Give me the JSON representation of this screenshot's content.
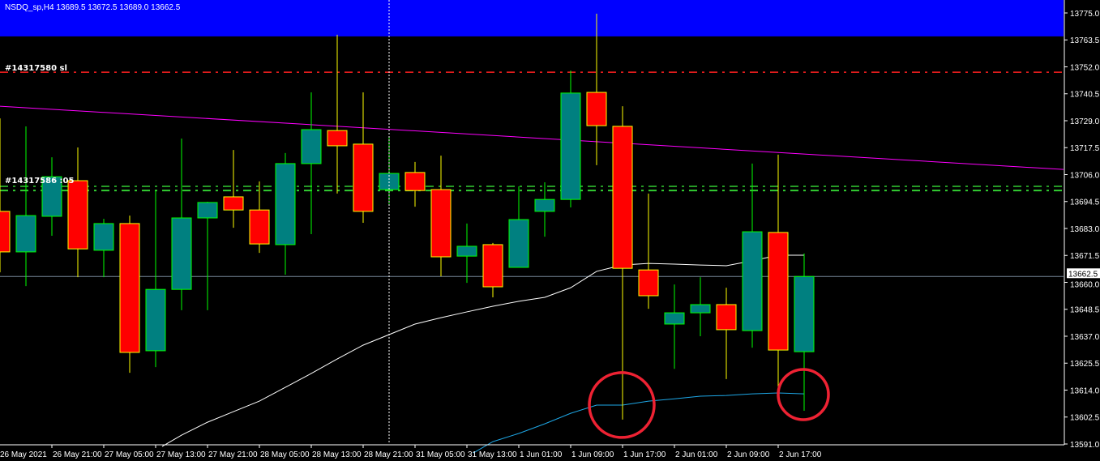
{
  "window": {
    "title": "NSDQ_sp,H4 13689.5 13672.5 13689.0 13662.5"
  },
  "colors": {
    "background": "#000000",
    "bull_body": "#008080",
    "bull_outline": "#00ff00",
    "bear_body": "#ff0000",
    "bear_outline": "#ffff00",
    "trendline": "#ff00ff",
    "ma_slow": "#ffffff",
    "ma_fast": "#1ea7e6",
    "sl_line": "#ff2020",
    "order_lines": "#32cd32",
    "price_line": "#778899",
    "highlight_circles": "#ee2233",
    "top_band": "#0000ff"
  },
  "order_labels": [
    {
      "text": "#14317580 sl"
    },
    {
      "text": "#14317586 :05"
    }
  ],
  "chart_data": {
    "type": "candlestick",
    "grid": false,
    "ylim": [
      13591.0,
      13775.0
    ],
    "y_ticks": [
      "13775.0",
      "13763.5",
      "13752.0",
      "13740.5",
      "13729.0",
      "13717.5",
      "13706.0",
      "13694.5",
      "13683.0",
      "13671.5",
      "13660.0",
      "13648.5",
      "13637.0",
      "13625.5",
      "13614.0",
      "13602.5",
      "13591.0"
    ],
    "x_ticks": [
      "26 May 2021",
      "26 May 21:00",
      "27 May 05:00",
      "27 May 13:00",
      "27 May 21:00",
      "28 May 05:00",
      "28 May 13:00",
      "28 May 21:00",
      "31 May 05:00",
      "31 May 13:00",
      "1 Jun 01:00",
      "1 Jun 09:00",
      "1 Jun 17:00",
      "2 Jun 01:00",
      "2 Jun 09:00",
      "2 Jun 17:00"
    ],
    "current_price": "13662.5",
    "candles": [
      {
        "o": 13690.3,
        "h": 13730.0,
        "l": 13664.3,
        "c": 13673.0
      },
      {
        "o": 13673.0,
        "h": 13726.6,
        "l": 13658.4,
        "c": 13688.5
      },
      {
        "o": 13688.2,
        "h": 13713.4,
        "l": 13679.9,
        "c": 13705.1
      },
      {
        "o": 13703.4,
        "h": 13717.6,
        "l": 13662.2,
        "c": 13674.3
      },
      {
        "o": 13673.7,
        "h": 13687.1,
        "l": 13662.2,
        "c": 13685.1
      },
      {
        "o": 13685.1,
        "h": 13688.5,
        "l": 13621.4,
        "c": 13630.1
      },
      {
        "o": 13630.8,
        "h": 13699.2,
        "l": 13623.8,
        "c": 13657.0
      },
      {
        "o": 13657.0,
        "h": 13721.4,
        "l": 13648.1,
        "c": 13687.5
      },
      {
        "o": 13687.5,
        "h": 13694.4,
        "l": 13648.1,
        "c": 13694.1
      },
      {
        "o": 13696.5,
        "h": 13716.5,
        "l": 13683.3,
        "c": 13690.9
      },
      {
        "o": 13690.9,
        "h": 13703.1,
        "l": 13672.6,
        "c": 13676.4
      },
      {
        "o": 13676.1,
        "h": 13715.2,
        "l": 13663.3,
        "c": 13710.7
      },
      {
        "o": 13710.7,
        "h": 13741.1,
        "l": 13680.6,
        "c": 13725.2
      },
      {
        "o": 13724.8,
        "h": 13765.7,
        "l": 13697.9,
        "c": 13718.3
      },
      {
        "o": 13719.0,
        "h": 13741.1,
        "l": 13685.4,
        "c": 13690.3
      },
      {
        "o": 13699.6,
        "h": 13722.1,
        "l": 13693.4,
        "c": 13706.5
      },
      {
        "o": 13706.9,
        "h": 13711.4,
        "l": 13692.3,
        "c": 13699.2
      },
      {
        "o": 13699.6,
        "h": 13714.1,
        "l": 13662.6,
        "c": 13670.9
      },
      {
        "o": 13671.2,
        "h": 13685.1,
        "l": 13659.8,
        "c": 13675.4
      },
      {
        "o": 13676.1,
        "h": 13676.8,
        "l": 13653.6,
        "c": 13658.1
      },
      {
        "o": 13666.4,
        "h": 13701.0,
        "l": 13666.4,
        "c": 13686.8
      },
      {
        "o": 13690.3,
        "h": 13702.7,
        "l": 13679.5,
        "c": 13695.4
      },
      {
        "o": 13695.4,
        "h": 13750.4,
        "l": 13692.0,
        "c": 13740.8
      },
      {
        "o": 13741.1,
        "h": 13774.7,
        "l": 13710.0,
        "c": 13726.9
      },
      {
        "o": 13726.6,
        "h": 13735.2,
        "l": 13601.4,
        "c": 13666.0
      },
      {
        "o": 13665.3,
        "h": 13697.9,
        "l": 13648.7,
        "c": 13654.3
      },
      {
        "o": 13642.2,
        "h": 13659.1,
        "l": 13623.1,
        "c": 13647.0
      },
      {
        "o": 13647.0,
        "h": 13662.2,
        "l": 13637.0,
        "c": 13650.5
      },
      {
        "o": 13650.5,
        "h": 13657.7,
        "l": 13618.7,
        "c": 13639.8
      },
      {
        "o": 13639.4,
        "h": 13710.7,
        "l": 13632.1,
        "c": 13681.6
      },
      {
        "o": 13681.3,
        "h": 13714.5,
        "l": 13615.5,
        "c": 13631.1
      },
      {
        "o": 13630.4,
        "h": 13672.3,
        "l": 13605.2,
        "c": 13662.5
      }
    ],
    "moving_averages": [
      {
        "color": "#ffffff",
        "start_index": 7,
        "values": [
          13594.8,
          13600.3,
          13604.8,
          13609.3,
          13615.2,
          13621.1,
          13627.3,
          13633.2,
          13637.7,
          13642.2,
          13644.9,
          13647.4,
          13649.8,
          13651.9,
          13653.6,
          13657.7,
          13664.7,
          13667.4,
          13668.1,
          13667.8,
          13667.4,
          13667.1,
          13669.2,
          13671.6,
          13671.6
        ]
      },
      {
        "color": "#1ea7e6",
        "start_index": 19,
        "values": [
          13592.0,
          13595.5,
          13599.6,
          13604.1,
          13607.6,
          13607.6,
          13609.3,
          13610.3,
          13611.4,
          13611.7,
          13612.4,
          13612.8,
          13612.4
        ]
      }
    ],
    "trendline": {
      "start_price": 13735.2,
      "end_price": 13708.2
    },
    "horizontal_lines": [
      {
        "price": 13749.7,
        "style": "dash-dot",
        "color": "#ff2020"
      },
      {
        "price": 13701.0,
        "style": "dash-dot",
        "color": "#32cd32"
      },
      {
        "price": 13699.2,
        "style": "dash-dot",
        "color": "#32cd32"
      },
      {
        "price": 13662.5,
        "style": "solid",
        "color": "#778899"
      }
    ],
    "top_band_from_price": 13765.0,
    "crosshair_index": 15,
    "highlighted_candles": [
      24,
      31
    ]
  }
}
